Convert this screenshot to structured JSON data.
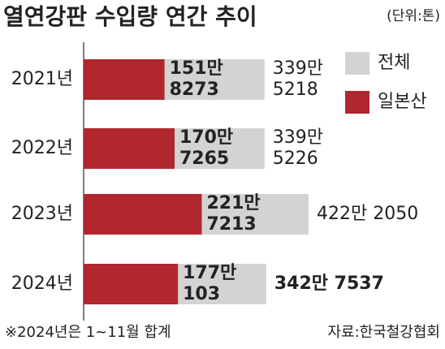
{
  "chart_data": {
    "type": "bar",
    "orientation": "horizontal",
    "overlap": true,
    "title": "열연강판 수입량 연간 추이",
    "unit_note": "(단위:톤)",
    "categories": [
      "2021년",
      "2022년",
      "2023년",
      "2024년"
    ],
    "series": [
      {
        "name": "전체",
        "color": "#d3d3d3",
        "values": [
          3395218,
          3395226,
          4222050,
          3427537
        ],
        "value_labels": [
          [
            "339만",
            "5218"
          ],
          [
            "339만",
            "5226"
          ],
          [
            "422만 2050"
          ],
          [
            "342만 7537"
          ]
        ]
      },
      {
        "name": "일본산",
        "color": "#b0272d",
        "values": [
          1518273,
          1707265,
          2217213,
          1770103
        ],
        "value_labels": [
          [
            "151만",
            "8273"
          ],
          [
            "170만",
            "7265"
          ],
          [
            "221만",
            "7213"
          ],
          [
            "177만",
            "103"
          ]
        ]
      }
    ],
    "footnote": "※2024년은 1~11월 합계",
    "source": "자료:한국철강협회"
  }
}
